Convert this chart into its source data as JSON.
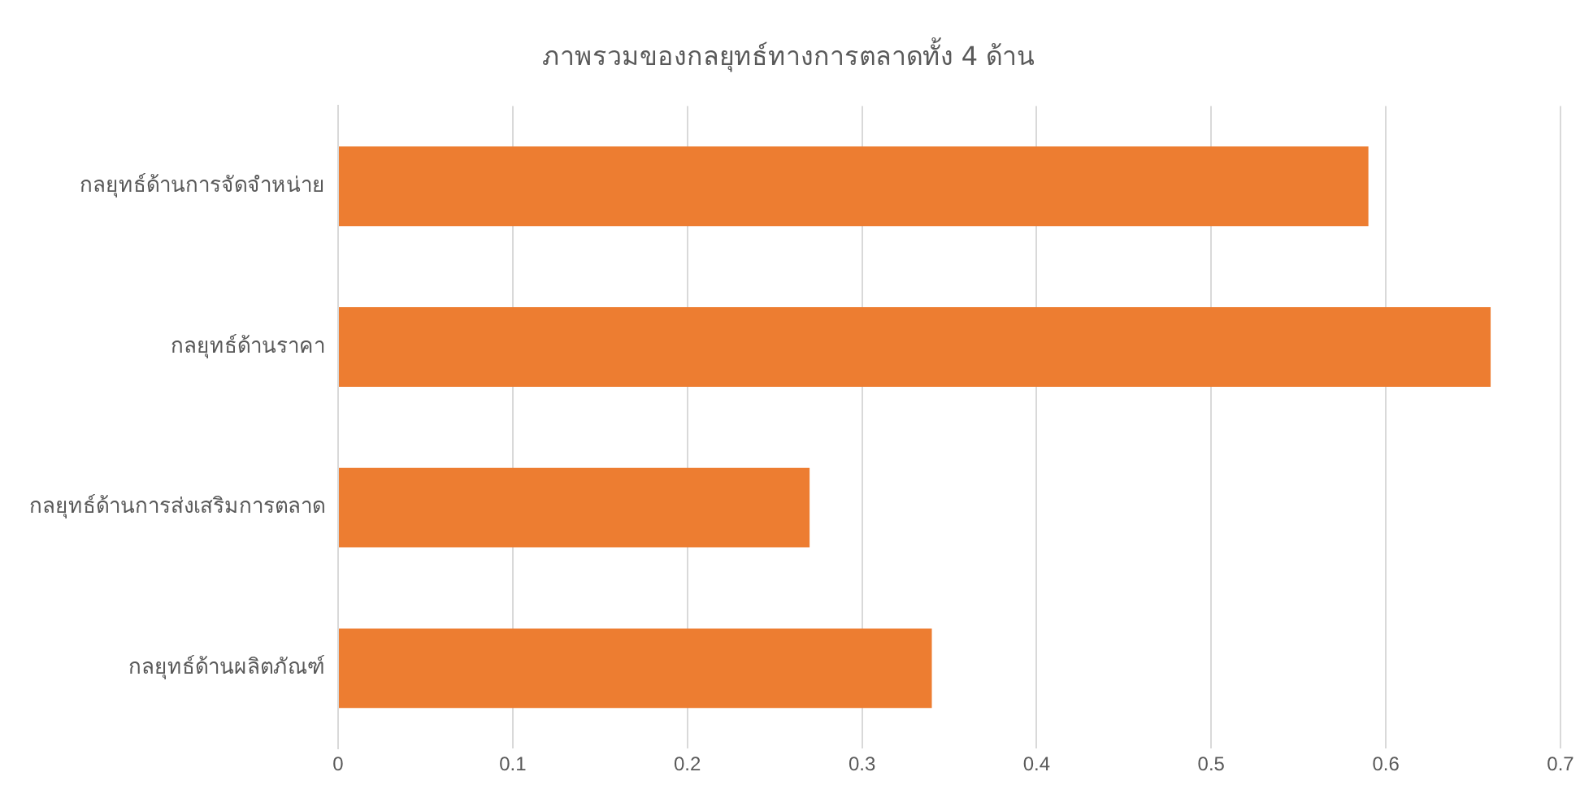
{
  "chart_data": {
    "type": "bar",
    "orientation": "horizontal",
    "title": "ภาพรวมของกลยุทธ์ทางการตลาดทั้ง 4 ด้าน",
    "categories": [
      "กลยุทธ์ด้านการจัดจำหน่าย",
      "กลยุทธ์ด้านราคา",
      "กลยุทธ์ด้านการส่งเสริมการตลาด",
      "กลยุทธ์ด้านผลิตภัณฑ์"
    ],
    "values": [
      0.59,
      0.66,
      0.27,
      0.34
    ],
    "color": "#ed7d31",
    "xlim": [
      0,
      0.7
    ],
    "xticks": [
      0,
      0.1,
      0.2,
      0.3,
      0.4,
      0.5,
      0.6,
      0.7
    ],
    "grid": "x",
    "legend": false
  }
}
